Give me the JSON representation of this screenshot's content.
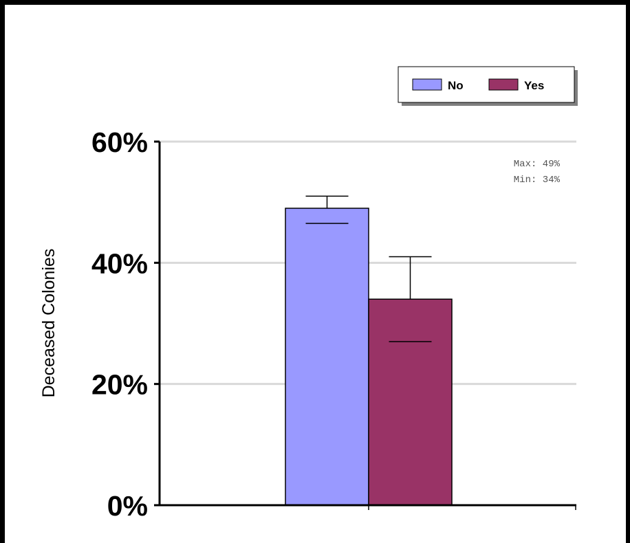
{
  "chart_data": {
    "type": "bar",
    "categories": [
      ""
    ],
    "series": [
      {
        "name": "No",
        "values": [
          49
        ],
        "error_high": [
          51
        ],
        "error_low": [
          46.5
        ],
        "color": "#9999ff"
      },
      {
        "name": "Yes",
        "values": [
          34
        ],
        "error_high": [
          41
        ],
        "error_low": [
          27
        ],
        "color": "#993366"
      }
    ],
    "title": "",
    "xlabel": "",
    "ylabel": "Deceased Colonies",
    "ylim": [
      0,
      60
    ],
    "yticks": [
      0,
      20,
      40,
      60
    ],
    "ytick_labels": [
      "0%",
      "20%",
      "40%",
      "60%"
    ],
    "grid": true,
    "legend_position": "top-right",
    "annotations": {
      "max": "Max: 49%",
      "min": "Min: 34%"
    }
  }
}
